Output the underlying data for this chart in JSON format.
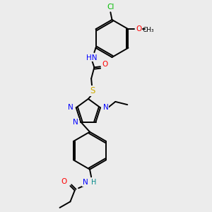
{
  "background_color": "#ececec",
  "atom_colors": {
    "C": "#000000",
    "N": "#0000ff",
    "O": "#ff0000",
    "S": "#ccaa00",
    "Cl": "#00bb00",
    "H": "#008888",
    "default": "#000000"
  },
  "bond_color": "#000000",
  "bond_width": 1.4,
  "figsize": [
    3.0,
    3.0
  ],
  "dpi": 100
}
